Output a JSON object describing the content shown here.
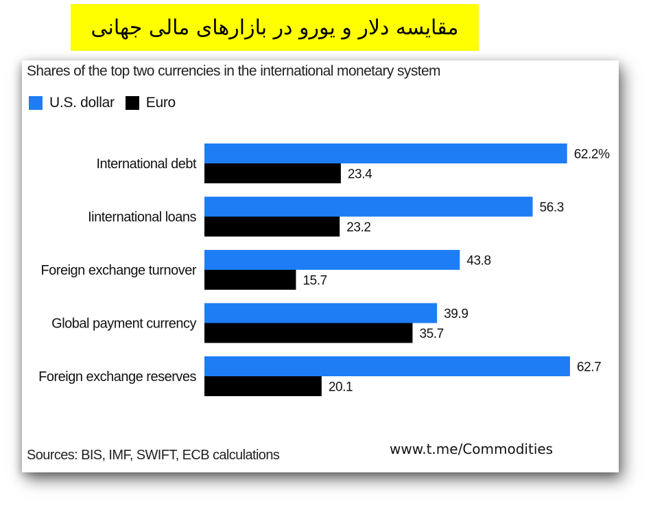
{
  "header": {
    "title": "مقایسه دلار و یورو در بازارهای مالی جهانی"
  },
  "watermark": "www.t.me/Commodities",
  "colors": {
    "dollar": "#1e7df5",
    "euro": "#000000",
    "banner": "#ffff00"
  },
  "chart_data": {
    "type": "bar",
    "orientation": "horizontal",
    "subtitle": "Shares of the top two currencies in the international monetary system",
    "categories": [
      "International debt",
      "Iinternational loans",
      "Foreign exchange turnover",
      "Global payment currency",
      "Foreign exchange reserves"
    ],
    "series": [
      {
        "name": "U.S. dollar",
        "color": "#1e7df5",
        "values": [
          62.2,
          56.3,
          43.8,
          39.9,
          62.7
        ],
        "labels": [
          "62.2%",
          "56.3",
          "43.8",
          "39.9",
          "62.7"
        ]
      },
      {
        "name": "Euro",
        "color": "#000000",
        "values": [
          23.4,
          23.2,
          15.7,
          35.7,
          20.1
        ],
        "labels": [
          "23.4",
          "23.2",
          "15.7",
          "35.7",
          "20.1"
        ]
      }
    ],
    "xlim": [
      0,
      100
    ],
    "grid": false,
    "legend": "top-left",
    "source": "Sources: BIS, IMF, SWIFT, ECB calculations"
  }
}
